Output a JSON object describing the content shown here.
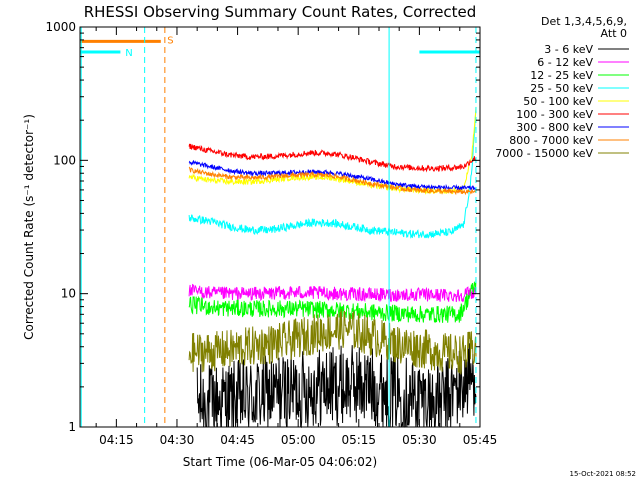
{
  "chart_data": {
    "type": "line",
    "title": "RHESSI Observing Summary Count Rates, Corrected",
    "xlabel": "Start Time (06-Mar-05 04:06:02)",
    "ylabel": "Corrected Count Rate (s⁻¹ detector⁻¹)",
    "y_scale": "log",
    "ylim": [
      1,
      1000
    ],
    "x_range_minutes": [
      "04:06",
      "05:45"
    ],
    "y_ticks": [
      "1",
      "10",
      "100",
      "1000"
    ],
    "x_ticks": [
      {
        "label": "04:15",
        "t": 15
      },
      {
        "label": "04:30",
        "t": 30
      },
      {
        "label": "04:45",
        "t": 45
      },
      {
        "label": "05:00",
        "t": 60
      },
      {
        "label": "05:15",
        "t": 75
      },
      {
        "label": "05:30",
        "t": 90
      },
      {
        "label": "05:45",
        "t": 105
      }
    ],
    "legend_header": [
      "Det 1,3,4,5,6,9,",
      "Att 0"
    ],
    "series": [
      {
        "name": "3 - 6 keV",
        "color": "#000000",
        "points": [
          [
            35,
            1.5
          ],
          [
            45,
            1.6
          ],
          [
            55,
            1.8
          ],
          [
            65,
            2.0
          ],
          [
            75,
            2.1
          ],
          [
            85,
            1.8
          ],
          [
            95,
            1.5
          ],
          [
            104,
            2.5
          ]
        ]
      },
      {
        "name": "6 - 12 keV",
        "color": "#ff00ff",
        "points": [
          [
            33,
            10.5
          ],
          [
            40,
            10.0
          ],
          [
            50,
            10.0
          ],
          [
            60,
            10.2
          ],
          [
            70,
            10.0
          ],
          [
            80,
            9.8
          ],
          [
            90,
            9.8
          ],
          [
            100,
            9.7
          ],
          [
            104,
            10.5
          ]
        ]
      },
      {
        "name": "12 - 25 keV",
        "color": "#00ff00",
        "points": [
          [
            33,
            8.3
          ],
          [
            40,
            7.8
          ],
          [
            50,
            7.7
          ],
          [
            60,
            7.7
          ],
          [
            70,
            7.5
          ],
          [
            80,
            7.2
          ],
          [
            90,
            7.0
          ],
          [
            100,
            7.0
          ],
          [
            104,
            12
          ]
        ]
      },
      {
        "name": "25 - 50 keV",
        "color": "#00ffff",
        "points": [
          [
            33,
            37
          ],
          [
            38,
            35
          ],
          [
            43,
            32
          ],
          [
            48,
            30
          ],
          [
            53,
            30
          ],
          [
            58,
            32
          ],
          [
            63,
            34
          ],
          [
            68,
            34
          ],
          [
            73,
            32
          ],
          [
            78,
            30
          ],
          [
            83,
            29
          ],
          [
            88,
            28
          ],
          [
            93,
            28
          ],
          [
            98,
            29
          ],
          [
            101,
            33
          ],
          [
            103,
            80
          ],
          [
            104,
            250
          ]
        ]
      },
      {
        "name": "50 - 100 keV",
        "color": "#ffff00",
        "points": [
          [
            33,
            75
          ],
          [
            38,
            71
          ],
          [
            43,
            69
          ],
          [
            48,
            69
          ],
          [
            53,
            71
          ],
          [
            58,
            74
          ],
          [
            63,
            75
          ],
          [
            68,
            74
          ],
          [
            73,
            70
          ],
          [
            78,
            65
          ],
          [
            83,
            62
          ],
          [
            88,
            60
          ],
          [
            93,
            59
          ],
          [
            98,
            59
          ],
          [
            101,
            62
          ],
          [
            103,
            110
          ],
          [
            104,
            240
          ]
        ]
      },
      {
        "name": "100 - 300 keV",
        "color": "#ff0000",
        "points": [
          [
            33,
            128
          ],
          [
            38,
            118
          ],
          [
            43,
            110
          ],
          [
            48,
            106
          ],
          [
            53,
            107
          ],
          [
            58,
            110
          ],
          [
            63,
            114
          ],
          [
            68,
            113
          ],
          [
            73,
            106
          ],
          [
            78,
            97
          ],
          [
            83,
            91
          ],
          [
            88,
            88
          ],
          [
            93,
            87
          ],
          [
            98,
            88
          ],
          [
            101,
            90
          ],
          [
            103,
            100
          ],
          [
            104,
            105
          ]
        ]
      },
      {
        "name": "300 - 800 keV",
        "color": "#0000ff",
        "points": [
          [
            33,
            97
          ],
          [
            38,
            90
          ],
          [
            43,
            84
          ],
          [
            48,
            80
          ],
          [
            53,
            80
          ],
          [
            58,
            81
          ],
          [
            63,
            82
          ],
          [
            68,
            81
          ],
          [
            73,
            77
          ],
          [
            78,
            72
          ],
          [
            83,
            67
          ],
          [
            88,
            64
          ],
          [
            93,
            63
          ],
          [
            98,
            62
          ],
          [
            101,
            62
          ],
          [
            104,
            62
          ]
        ]
      },
      {
        "name": "800 - 7000 keV",
        "color": "#ff8000",
        "points": [
          [
            33,
            85
          ],
          [
            38,
            79
          ],
          [
            43,
            75
          ],
          [
            48,
            74
          ],
          [
            53,
            75
          ],
          [
            58,
            77
          ],
          [
            63,
            78
          ],
          [
            68,
            77
          ],
          [
            73,
            72
          ],
          [
            78,
            67
          ],
          [
            83,
            63
          ],
          [
            88,
            60
          ],
          [
            93,
            59
          ],
          [
            98,
            58
          ],
          [
            101,
            58
          ],
          [
            104,
            58
          ]
        ]
      },
      {
        "name": "7000 - 15000 keV",
        "color": "#808000",
        "points": [
          [
            33,
            3.6
          ],
          [
            40,
            3.7
          ],
          [
            48,
            4.0
          ],
          [
            56,
            4.3
          ],
          [
            64,
            5.0
          ],
          [
            72,
            5.5
          ],
          [
            78,
            4.8
          ],
          [
            84,
            4.2
          ],
          [
            90,
            3.9
          ],
          [
            96,
            3.6
          ],
          [
            101,
            3.5
          ],
          [
            104,
            4.0
          ]
        ]
      }
    ],
    "flags": [
      {
        "label": "N",
        "color": "#00ffff"
      },
      {
        "label": "S",
        "color": "#ff8000"
      }
    ],
    "footer_timestamp": "15-Oct-2021 08:52"
  }
}
